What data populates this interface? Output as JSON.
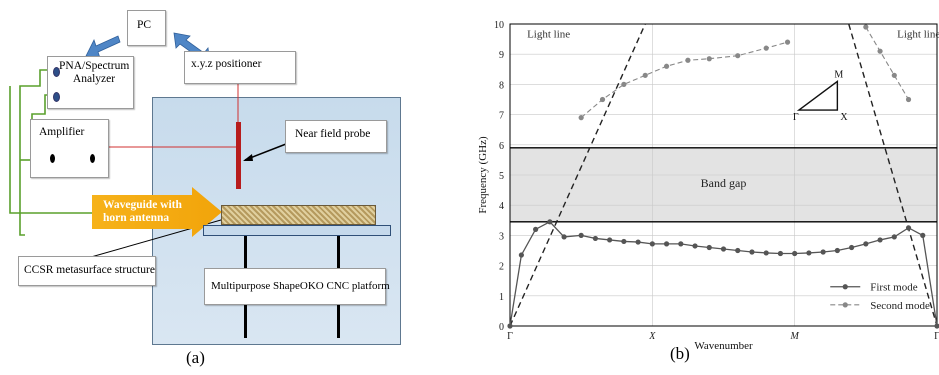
{
  "diagram_a": {
    "pc_label": "PC",
    "pna_label": "PNA/Spectrum Analyzer",
    "positioner_label": "x.y.z positioner",
    "amplifier_label": "Amplifier",
    "probe_label": "Near field probe",
    "waveguide_label": "Waveguide with horn antenna",
    "ccsr_label": "CCSR metasurface structure",
    "cnc_label": "Multipurpose ShapeOKO CNC platform",
    "caption": "(a)"
  },
  "chart_b": {
    "caption": "(b)",
    "band_gap_label": "Band gap",
    "light_line_left": "Light line",
    "light_line_right": "Light line",
    "inset": {
      "M": "M",
      "G": "Γ",
      "X": "X"
    }
  },
  "chart_data": {
    "type": "line",
    "title": "",
    "xlabel": "Wavenumber",
    "ylabel": "Frequency (GHz)",
    "ylim": [
      0,
      10
    ],
    "yticks": [
      "0",
      "1",
      "2",
      "3",
      "4",
      "5",
      "6",
      "7",
      "8",
      "9",
      "10"
    ],
    "x_tick_labels": [
      "Γ",
      "X",
      "M",
      "Γ"
    ],
    "x_tick_positions": [
      0,
      1,
      2,
      3
    ],
    "band_gap": [
      3.45,
      5.9
    ],
    "legend_position": "bottom-right",
    "series": [
      {
        "name": "First mode",
        "style": "solid-circle",
        "x": [
          0,
          0.08,
          0.18,
          0.28,
          0.38,
          0.5,
          0.6,
          0.7,
          0.8,
          0.9,
          1.0,
          1.1,
          1.2,
          1.3,
          1.4,
          1.5,
          1.6,
          1.7,
          1.8,
          1.9,
          2.0,
          2.1,
          2.2,
          2.3,
          2.4,
          2.5,
          2.6,
          2.7,
          2.8,
          2.9,
          3.0
        ],
        "y": [
          0,
          2.35,
          3.2,
          3.45,
          2.95,
          3.0,
          2.9,
          2.85,
          2.8,
          2.78,
          2.72,
          2.72,
          2.72,
          2.65,
          2.6,
          2.55,
          2.5,
          2.45,
          2.42,
          2.4,
          2.4,
          2.42,
          2.45,
          2.5,
          2.6,
          2.72,
          2.85,
          2.95,
          3.25,
          3.0,
          0
        ]
      },
      {
        "name": "Second mode",
        "style": "dashed-circle",
        "x": [
          0.5,
          0.65,
          0.8,
          0.95,
          1.1,
          1.25,
          1.4,
          1.6,
          1.8,
          1.95,
          2.5,
          2.6,
          2.7,
          2.8
        ],
        "y": [
          6.9,
          7.5,
          8.0,
          8.3,
          8.6,
          8.8,
          8.85,
          8.95,
          9.2,
          9.4,
          9.9,
          9.1,
          8.3,
          7.5
        ]
      }
    ],
    "light_lines": [
      {
        "x": [
          0,
          0.95
        ],
        "y": [
          0,
          10
        ]
      },
      {
        "x": [
          2.38,
          3.0
        ],
        "y": [
          10,
          0
        ]
      }
    ]
  }
}
